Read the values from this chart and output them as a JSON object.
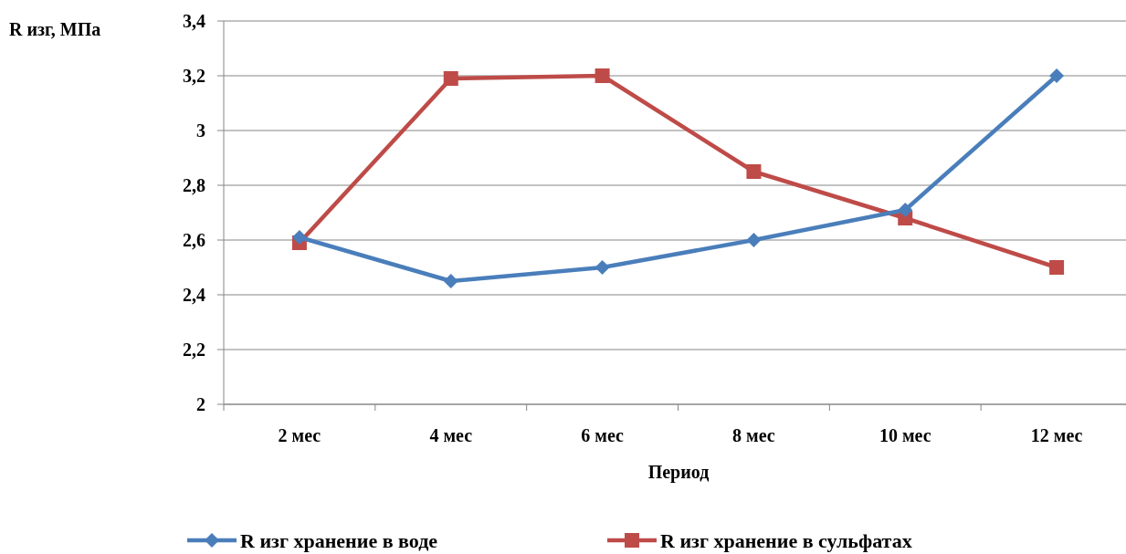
{
  "chart_data": {
    "type": "line",
    "ylabel": "R изг, МПа",
    "xlabel": "Период",
    "categories": [
      "2 мес",
      "4 мес",
      "6 мес",
      "8 мес",
      "10 мес",
      "12 мес"
    ],
    "series": [
      {
        "name": "R изг хранение в воде",
        "color": "#4a7ebb",
        "marker": "diamond",
        "values": [
          2.61,
          2.45,
          2.5,
          2.6,
          2.71,
          3.2
        ]
      },
      {
        "name": "R изг хранение в сульфатах",
        "color": "#be4b48",
        "marker": "square",
        "values": [
          2.59,
          3.19,
          3.2,
          2.85,
          2.68,
          2.5
        ]
      }
    ],
    "ylim": [
      2,
      3.4
    ],
    "yticks": [
      {
        "value": 2,
        "label": "2"
      },
      {
        "value": 2.2,
        "label": "2,2"
      },
      {
        "value": 2.4,
        "label": "2,4"
      },
      {
        "value": 2.6,
        "label": "2,6"
      },
      {
        "value": 2.8,
        "label": "2,8"
      },
      {
        "value": 3,
        "label": "3"
      },
      {
        "value": 3.2,
        "label": "3,2"
      },
      {
        "value": 3.4,
        "label": "3,4"
      }
    ],
    "grid": "y",
    "legend": "bottom",
    "line_style": "solid"
  }
}
